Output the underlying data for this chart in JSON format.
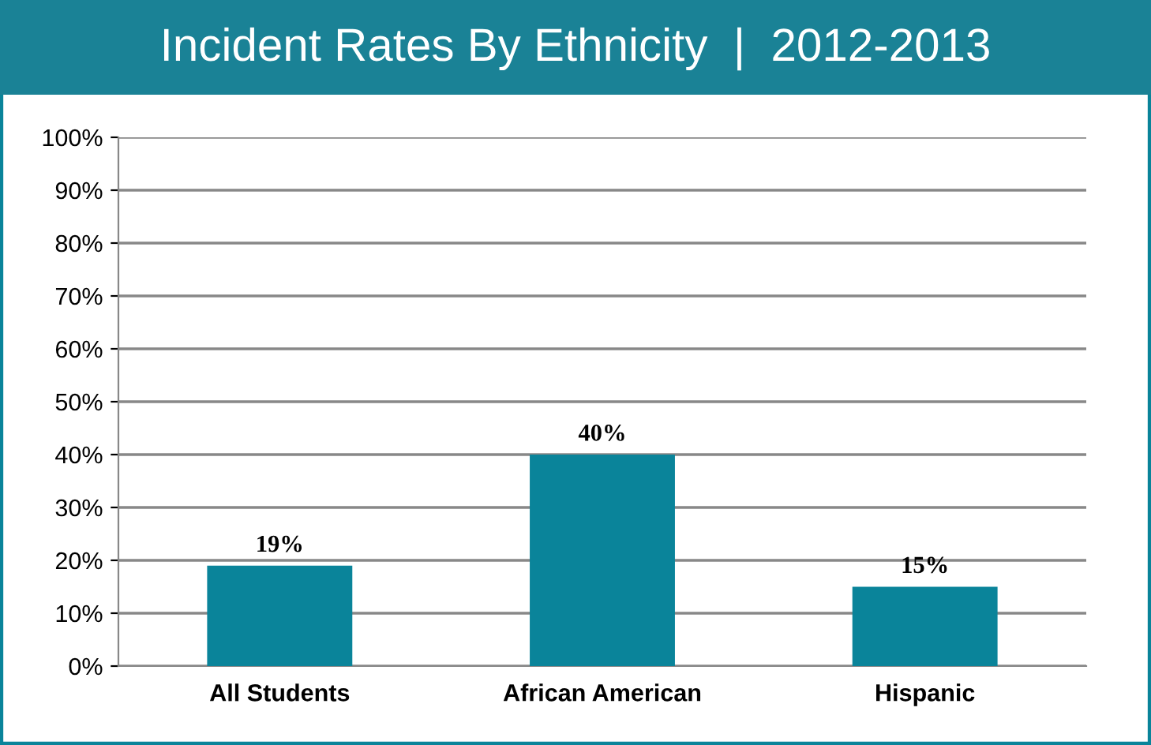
{
  "chart_data": {
    "type": "bar",
    "title": "Incident Rates By Ethnicity  |  2012-2013",
    "categories": [
      "All Students",
      "African American",
      "Hispanic"
    ],
    "values": [
      19,
      40,
      15
    ],
    "value_labels": [
      "19%",
      "40%",
      "15%"
    ],
    "color": "#0a849a",
    "ylim": [
      0,
      100
    ],
    "yticks": [
      {
        "value": 0,
        "label": "0%"
      },
      {
        "value": 10,
        "label": "10%"
      },
      {
        "value": 20,
        "label": "20%"
      },
      {
        "value": 30,
        "label": "30%"
      },
      {
        "value": 40,
        "label": "40%"
      },
      {
        "value": 50,
        "label": "50%"
      },
      {
        "value": 60,
        "label": "60%"
      },
      {
        "value": 70,
        "label": "70%"
      },
      {
        "value": 80,
        "label": "80%"
      },
      {
        "value": 90,
        "label": "90%"
      },
      {
        "value": 100,
        "label": "100%"
      }
    ],
    "grid": "y",
    "legend": false
  }
}
